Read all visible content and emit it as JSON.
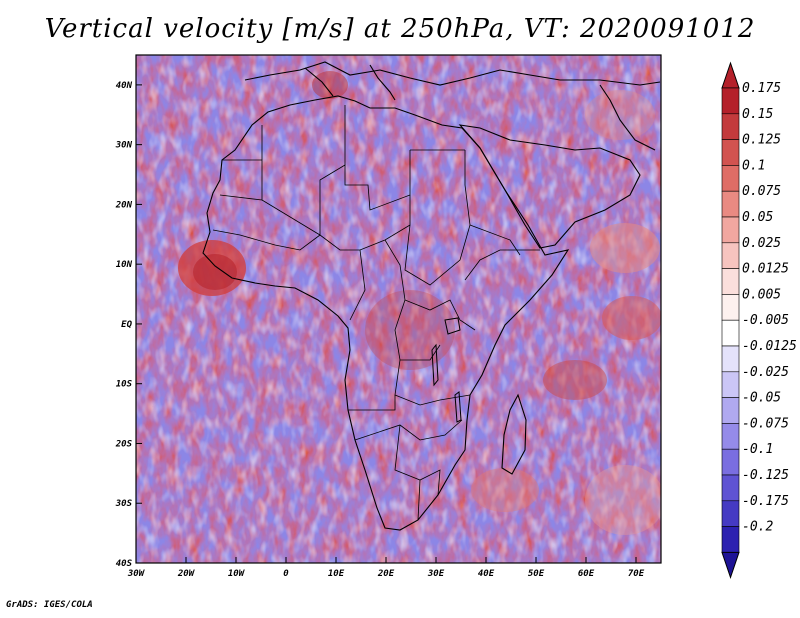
{
  "title": "Vertical velocity [m/s] at 250hPa, VT: 2020091012",
  "footer": "GrADS: IGES/COLA",
  "map": {
    "lon_range": [
      -30,
      75
    ],
    "lat_range": [
      -40,
      45
    ],
    "lat_ticks": [
      {
        "value": 40,
        "label": "40N"
      },
      {
        "value": 30,
        "label": "30N"
      },
      {
        "value": 20,
        "label": "20N"
      },
      {
        "value": 10,
        "label": "10N"
      },
      {
        "value": 0,
        "label": "EQ"
      },
      {
        "value": -10,
        "label": "10S"
      },
      {
        "value": -20,
        "label": "20S"
      },
      {
        "value": -30,
        "label": "30S"
      },
      {
        "value": -40,
        "label": "40S"
      }
    ],
    "lon_ticks": [
      {
        "value": -30,
        "label": "30W"
      },
      {
        "value": -20,
        "label": "20W"
      },
      {
        "value": -10,
        "label": "10W"
      },
      {
        "value": 0,
        "label": "0"
      },
      {
        "value": 10,
        "label": "10E"
      },
      {
        "value": 20,
        "label": "20E"
      },
      {
        "value": 30,
        "label": "30E"
      },
      {
        "value": 40,
        "label": "40E"
      },
      {
        "value": 50,
        "label": "50E"
      },
      {
        "value": 60,
        "label": "60E"
      },
      {
        "value": 70,
        "label": "70E"
      }
    ]
  },
  "colorbar": {
    "levels": [
      {
        "label": "0.175",
        "color": "#b4202a"
      },
      {
        "label": "0.15",
        "color": "#c33a3c"
      },
      {
        "label": "0.125",
        "color": "#d25350"
      },
      {
        "label": "0.1",
        "color": "#df6d66"
      },
      {
        "label": "0.075",
        "color": "#e98a82"
      },
      {
        "label": "0.05",
        "color": "#f1a7a0"
      },
      {
        "label": "0.025",
        "color": "#f7c4bf"
      },
      {
        "label": "0.0125",
        "color": "#fbdfdc"
      },
      {
        "label": "0.005",
        "color": "#fdf1ef"
      },
      {
        "label": "-0.005",
        "color": "#ffffff"
      },
      {
        "label": "-0.0125",
        "color": "#e4e2fb"
      },
      {
        "label": "-0.025",
        "color": "#cbc6f6"
      },
      {
        "label": "-0.05",
        "color": "#b0a9f0"
      },
      {
        "label": "-0.075",
        "color": "#958be9"
      },
      {
        "label": "-0.1",
        "color": "#7a6ee0"
      },
      {
        "label": "-0.125",
        "color": "#5f53d3"
      },
      {
        "label": "-0.175",
        "color": "#453ac3"
      },
      {
        "label": "-0.2",
        "color": "#2c21b0"
      }
    ],
    "bottom_color": "#1e1396"
  }
}
